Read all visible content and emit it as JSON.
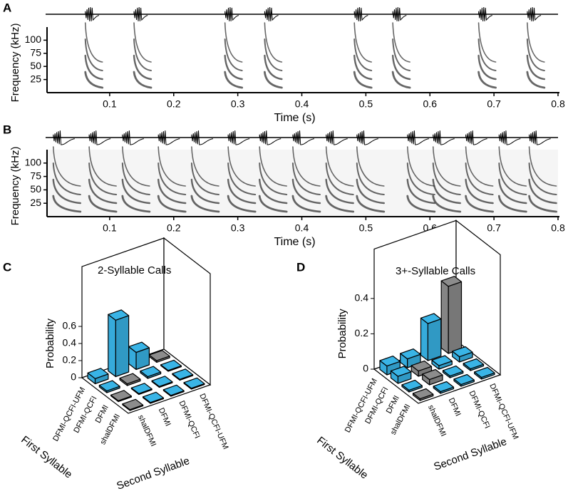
{
  "chart_data": [
    {
      "type": "spectrogram",
      "panel_label": "A",
      "y_label": "Frequency (kHz)",
      "x_label": "Time (s)",
      "xlim": [
        0,
        0.8
      ],
      "ylim": [
        0,
        125
      ],
      "xticks": [
        0.1,
        0.2,
        0.3,
        0.4,
        0.5,
        0.6,
        0.7,
        0.8
      ],
      "yticks": [
        25,
        50,
        75,
        100
      ],
      "call_onsets": [
        0.062,
        0.138,
        0.28,
        0.342,
        0.482,
        0.542,
        0.676,
        0.752
      ]
    },
    {
      "type": "spectrogram",
      "panel_label": "B",
      "y_label": "Frequency (kHz)",
      "x_label": "Time (s)",
      "xlim": [
        0,
        0.8
      ],
      "ylim": [
        0,
        125
      ],
      "xticks": [
        0.1,
        0.2,
        0.3,
        0.4,
        0.5,
        0.6,
        0.7,
        0.8
      ],
      "yticks": [
        25,
        50,
        75,
        100
      ],
      "call_onsets": [
        0.012,
        0.068,
        0.12,
        0.176,
        0.228,
        0.285,
        0.334,
        0.386,
        0.438,
        0.486,
        0.565,
        0.605,
        0.656,
        0.708,
        0.755
      ]
    },
    {
      "type": "bar3d",
      "panel_label": "C",
      "title": "2-Syllable Calls",
      "z_label": "Probability",
      "zlim": [
        0,
        1.3
      ],
      "zticks": [
        0,
        0.2,
        0.4,
        0.6
      ],
      "row_axis_label": "First Syllable",
      "col_axis_label": "Second Syllable",
      "rows": [
        "DFMI-QCFI-UFM",
        "DFMI-QCFI",
        "DFMI",
        "shalDFMI"
      ],
      "cols": [
        "shalDFMI",
        "DFMI",
        "DFMI-QCFI",
        "DFMI-QCFI-UFM"
      ],
      "values": [
        [
          0.06,
          0.66,
          0.2,
          0.02
        ],
        [
          0.02,
          0.02,
          0.02,
          0.01
        ],
        [
          0.01,
          0.01,
          0.01,
          0.01
        ],
        [
          0.01,
          0.01,
          0.01,
          0.01
        ]
      ],
      "colors": [
        [
          "#39b4e6",
          "#39b4e6",
          "#39b4e6",
          "#8c8c8c"
        ],
        [
          "#39b4e6",
          "#8c8c8c",
          "#39b4e6",
          "#39b4e6"
        ],
        [
          "#8c8c8c",
          "#39b4e6",
          "#39b4e6",
          "#39b4e6"
        ],
        [
          "#8c8c8c",
          "#39b4e6",
          "#39b4e6",
          "#39b4e6"
        ]
      ]
    },
    {
      "type": "bar3d",
      "panel_label": "D",
      "title": "3+-Syllable Calls",
      "z_label": "Probability",
      "zlim": [
        0,
        0.68
      ],
      "zticks": [
        0,
        0.2,
        0.4
      ],
      "row_axis_label": "First Syllable",
      "col_axis_label": "Second Syllable",
      "rows": [
        "DFMI-QCFI-UFM",
        "DFMI-QCFI",
        "DFMI",
        "shalDFMI"
      ],
      "cols": [
        "shalDFMI",
        "DFMI",
        "DFMI-QCFI",
        "DFMI-QCFI-UFM"
      ],
      "values": [
        [
          0.05,
          0.05,
          0.21,
          0.38
        ],
        [
          0.04,
          0.03,
          0.02,
          0.03
        ],
        [
          0.01,
          0.03,
          0.01,
          0.01
        ],
        [
          0.01,
          0.01,
          0.01,
          0.01
        ]
      ],
      "colors": [
        [
          "#39b4e6",
          "#39b4e6",
          "#39b4e6",
          "#8c8c8c"
        ],
        [
          "#39b4e6",
          "#8c8c8c",
          "#39b4e6",
          "#39b4e6"
        ],
        [
          "#39b4e6",
          "#8c8c8c",
          "#39b4e6",
          "#39b4e6"
        ],
        [
          "#8c8c8c",
          "#39b4e6",
          "#39b4e6",
          "#39b4e6"
        ]
      ]
    }
  ]
}
